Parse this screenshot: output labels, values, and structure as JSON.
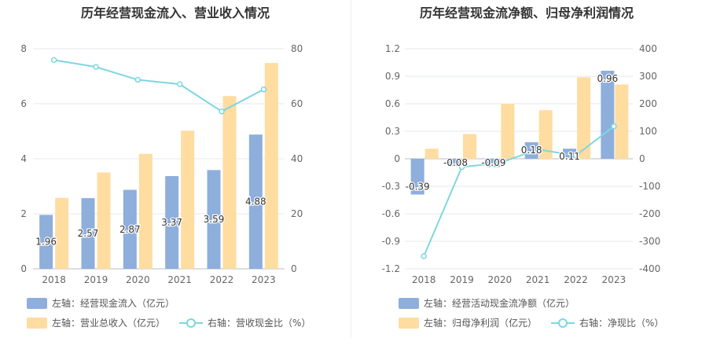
{
  "chart_data": [
    {
      "type": "bar",
      "title": "历年经营现金流入、营业收入情况",
      "categories": [
        "2018",
        "2019",
        "2020",
        "2021",
        "2022",
        "2023"
      ],
      "series": [
        {
          "name": "左轴：经营现金流入（亿元）",
          "type": "bar",
          "axis": "left",
          "color": "#8eaedc",
          "values": [
            1.96,
            2.57,
            2.87,
            3.37,
            3.59,
            4.88
          ],
          "labels": [
            "1.96",
            "2.57",
            "2.87",
            "3.37",
            "3.59",
            "4.88"
          ]
        },
        {
          "name": "左轴：营业总收入（亿元）",
          "type": "bar",
          "axis": "left",
          "color": "#ffdca0",
          "values": [
            2.58,
            3.5,
            4.18,
            5.02,
            6.28,
            7.48
          ]
        },
        {
          "name": "右轴：营收现金比（%）",
          "type": "line",
          "axis": "right",
          "color": "#7fd6df",
          "values": [
            75.9,
            73.4,
            68.7,
            67.1,
            57.2,
            65.2
          ]
        }
      ],
      "y_left": {
        "ticks": [
          "0",
          "2",
          "4",
          "6",
          "8"
        ],
        "range": [
          0,
          8
        ]
      },
      "y_right": {
        "ticks": [
          "0",
          "20",
          "40",
          "60",
          "80"
        ],
        "range": [
          0,
          80
        ]
      },
      "grid": true,
      "legend": "bottom"
    },
    {
      "type": "bar",
      "title": "历年经营现金流净额、归母净利润情况",
      "categories": [
        "2018",
        "2019",
        "2020",
        "2021",
        "2022",
        "2023"
      ],
      "series": [
        {
          "name": "左轴：经营活动现金流净额（亿元）",
          "type": "bar",
          "axis": "left",
          "color": "#8eaedc",
          "values": [
            -0.39,
            -0.08,
            -0.09,
            0.18,
            0.11,
            0.96
          ],
          "labels": [
            "-0.39",
            "-0.08",
            "-0.09",
            "0.18",
            "0.11",
            "0.96"
          ]
        },
        {
          "name": "左轴：归母净利润（亿元）",
          "type": "bar",
          "axis": "left",
          "color": "#ffdca0",
          "values": [
            0.11,
            0.27,
            0.6,
            0.53,
            0.89,
            0.81
          ]
        },
        {
          "name": "右轴：净现比（%）",
          "type": "line",
          "axis": "right",
          "color": "#7fd6df",
          "values": [
            -354,
            -30,
            -15,
            34,
            12,
            118
          ]
        }
      ],
      "y_left": {
        "ticks": [
          "-1.2",
          "-0.9",
          "-0.6",
          "-0.3",
          "0",
          "0.3",
          "0.6",
          "0.9",
          "1.2"
        ],
        "range": [
          -1.2,
          1.2
        ]
      },
      "y_right": {
        "ticks": [
          "-400",
          "-300",
          "-200",
          "-100",
          "0",
          "100",
          "200",
          "300",
          "400"
        ],
        "range": [
          -400,
          400
        ]
      },
      "grid": true,
      "legend": "bottom"
    }
  ]
}
